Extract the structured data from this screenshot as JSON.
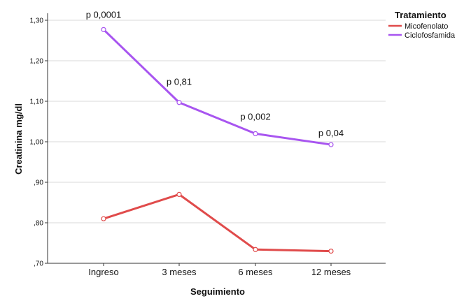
{
  "chart_data": {
    "type": "line",
    "categories": [
      "Ingreso",
      "3 meses",
      "6 meses",
      "12 meses"
    ],
    "series": [
      {
        "name": "Micofenolato",
        "color": "#e04b4b",
        "values": [
          0.81,
          0.87,
          0.734,
          0.73
        ]
      },
      {
        "name": "Ciclofosfamida",
        "color": "#a855f0",
        "values": [
          1.277,
          1.097,
          1.02,
          0.993
        ]
      }
    ],
    "xlabel": "Seguimiento",
    "ylabel": "Creatinina mg/dl",
    "ylim": [
      0.7,
      1.3
    ],
    "yticks": [
      ",70",
      ",80",
      ",90",
      "1,00",
      "1,10",
      "1,20",
      "1,30"
    ],
    "yticks_values": [
      0.7,
      0.8,
      0.9,
      1.0,
      1.1,
      1.2,
      1.3
    ],
    "grid": true,
    "legend": {
      "title": "Tratamiento",
      "position": "top-right"
    },
    "annotations": [
      {
        "text": "p 0,0001",
        "category": "Ingreso"
      },
      {
        "text": "p 0,81",
        "category": "3 meses"
      },
      {
        "text": "p 0,002",
        "category": "6 meses"
      },
      {
        "text": "p 0,04",
        "category": "12 meses"
      }
    ]
  }
}
